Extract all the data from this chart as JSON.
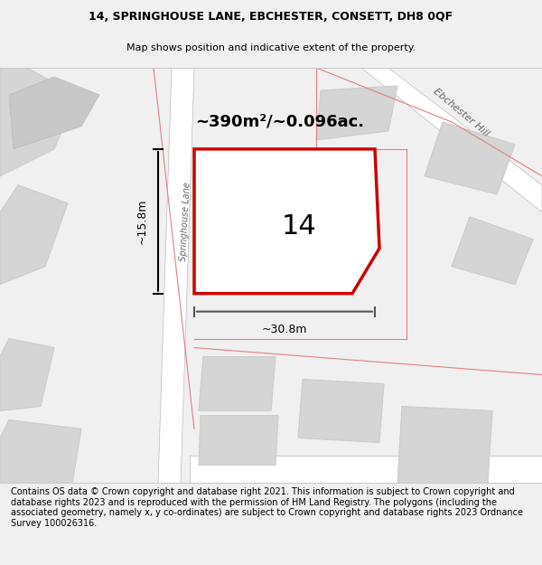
{
  "title_line1": "14, SPRINGHOUSE LANE, EBCHESTER, CONSETT, DH8 0QF",
  "title_line2": "Map shows position and indicative extent of the property.",
  "footer_text": "Contains OS data © Crown copyright and database right 2021. This information is subject to Crown copyright and database rights 2023 and is reproduced with the permission of HM Land Registry. The polygons (including the associated geometry, namely x, y co-ordinates) are subject to Crown copyright and database rights 2023 Ordnance Survey 100026316.",
  "bg_color": "#e8e8e8",
  "map_bg": "#f0f0f0",
  "plot_color": "#ffffff",
  "road_color": "#ffffff",
  "highlight_color": "#cc0000",
  "dim_color": "#333333",
  "street_label": "Springhouse Lane",
  "road_label": "Ebchester Hill",
  "area_label": "~390m²/~0.096ac.",
  "number_label": "14",
  "dim_width": "~30.8m",
  "dim_height": "~15.8m",
  "title_fontsize": 9,
  "footer_fontsize": 7.5
}
